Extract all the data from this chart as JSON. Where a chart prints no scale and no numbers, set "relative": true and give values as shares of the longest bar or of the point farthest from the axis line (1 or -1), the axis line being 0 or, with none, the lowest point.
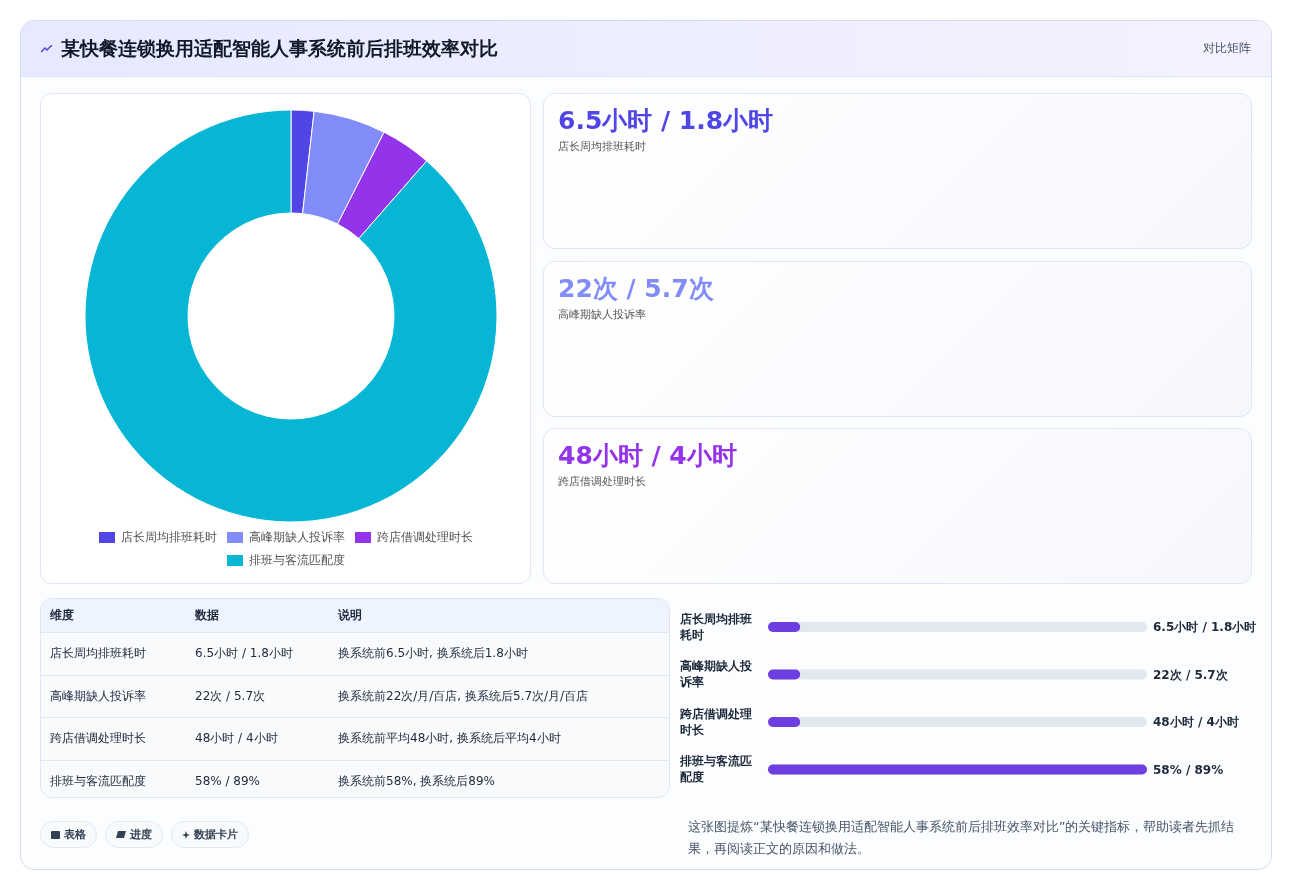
{
  "chart_data": [
    {
      "type": "donut",
      "title": "某快餐连锁换用适配智能人事系统前后排班效率对比",
      "annotations": [
        "对比矩阵"
      ],
      "categories": [
        "店长周均排班耗时",
        "高峰期缺人投诉率",
        "跨店借调处理时长",
        "排班与客流匹配度"
      ],
      "values": [
        1.8,
        5.7,
        4,
        89
      ],
      "colors": [
        "#4f46e5",
        "#818cf8",
        "#9333ea",
        "#06b6d4"
      ],
      "legend": "bottom"
    },
    {
      "type": "other",
      "annotations": [
        "6.5小时 / 1.8小时",
        "店长周均排班耗时",
        "22次 / 5.7次",
        "高峰期缺人投诉率",
        "48小时 / 4小时",
        "跨店借调处理时长"
      ]
    },
    {
      "type": "other",
      "annotations": [
        "维度",
        "数据",
        "说明",
        "店长周均排班耗时",
        "6.5小时 / 1.8小时",
        "换系统前6.5小时, 换系统后1.8小时",
        "高峰期缺人投诉率",
        "22次 / 5.7次",
        "换系统前22次/月/百店, 换系统后5.7次/月/百店",
        "跨店借调处理时长",
        "48小时 / 4小时",
        "换系统前平均48小时, 换系统后平均4小时",
        "排班与客流匹配度",
        "58% / 89%",
        "换系统前58%, 换系统后89%"
      ]
    },
    {
      "type": "bar",
      "orientation": "horizontal",
      "relative": true,
      "categories": [
        "店长周均排班耗时",
        "高峰期缺人投诉率",
        "跨店借调处理时长",
        "排班与客流匹配度"
      ],
      "values": [
        0.085,
        0.085,
        0.085,
        1
      ],
      "color": "#6d3fe0",
      "annotations": [
        "6.5小时 / 1.8小时",
        "22次 / 5.7次",
        "48小时 / 4小时",
        "58% / 89%",
        "这张图提炼“某快餐连锁换用适配智能人事系统前后排班效率对比”的关键指标，帮助读者先抓结果，再阅读正文的原因和做法。"
      ]
    },
    {
      "type": "other",
      "annotations": [
        "表格",
        "进度",
        "数据卡片"
      ]
    }
  ]
}
